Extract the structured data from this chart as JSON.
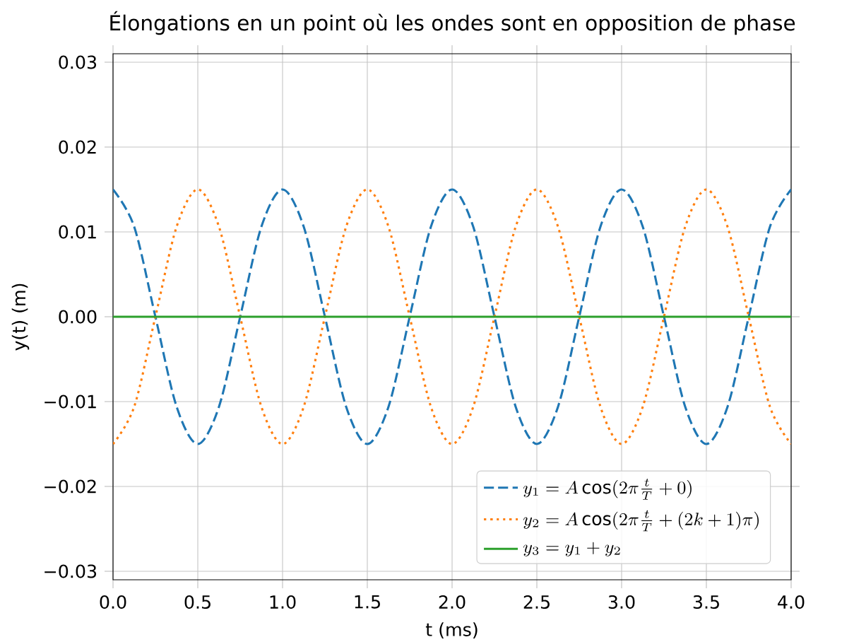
{
  "chart_data": {
    "type": "line",
    "title": "Élongations en un point où les ondes sont en opposition de phase",
    "xlabel": "t (ms)",
    "ylabel": "y(t) (m)",
    "x": [
      0,
      0.125,
      0.25,
      0.375,
      0.5,
      0.625,
      0.75,
      0.875,
      1,
      1.125,
      1.25,
      1.375,
      1.5,
      1.625,
      1.75,
      1.875,
      2,
      2.125,
      2.25,
      2.375,
      2.5,
      2.625,
      2.75,
      2.875,
      3,
      3.125,
      3.25,
      3.375,
      3.5,
      3.625,
      3.75,
      3.875,
      4
    ],
    "series": [
      {
        "name": "y_1 = A\\cos(2\\pi\\frac{t}{T} + 0)",
        "color": "#1f77b4",
        "line_style": "dashed",
        "values": [
          0.015,
          0.0106,
          0,
          -0.0106,
          -0.015,
          -0.0106,
          0,
          0.0106,
          0.015,
          0.0106,
          0,
          -0.0106,
          -0.015,
          -0.0106,
          0,
          0.0106,
          0.015,
          0.0106,
          0,
          -0.0106,
          -0.015,
          -0.0106,
          0,
          0.0106,
          0.015,
          0.0106,
          0,
          -0.0106,
          -0.015,
          -0.0106,
          0,
          0.0106,
          0.015
        ]
      },
      {
        "name": "y_2 = A\\cos(2\\pi\\frac{t}{T} + (2k+1)\\pi)",
        "color": "#ff7f0e",
        "line_style": "dotted",
        "values": [
          -0.015,
          -0.0106,
          0,
          0.0106,
          0.015,
          0.0106,
          0,
          -0.0106,
          -0.015,
          -0.0106,
          0,
          0.0106,
          0.015,
          0.0106,
          0,
          -0.0106,
          -0.015,
          -0.0106,
          0,
          0.0106,
          0.015,
          0.0106,
          0,
          -0.0106,
          -0.015,
          -0.0106,
          0,
          0.0106,
          0.015,
          0.0106,
          0,
          -0.0106,
          -0.015
        ]
      },
      {
        "name": "y_3 = y_1 + y_2",
        "color": "#2ca02c",
        "line_style": "solid",
        "values": [
          0,
          0,
          0,
          0,
          0,
          0,
          0,
          0,
          0,
          0,
          0,
          0,
          0,
          0,
          0,
          0,
          0,
          0,
          0,
          0,
          0,
          0,
          0,
          0,
          0,
          0,
          0,
          0,
          0,
          0,
          0,
          0,
          0
        ]
      }
    ],
    "xlim": [
      0,
      4
    ],
    "ylim": [
      -0.031,
      0.031
    ],
    "xticks": [
      {
        "value": 0,
        "label": "0.0"
      },
      {
        "value": 0.5,
        "label": "0.5"
      },
      {
        "value": 1,
        "label": "1.0"
      },
      {
        "value": 1.5,
        "label": "1.5"
      },
      {
        "value": 2,
        "label": "2.0"
      },
      {
        "value": 2.5,
        "label": "2.5"
      },
      {
        "value": 3,
        "label": "3.0"
      },
      {
        "value": 3.5,
        "label": "3.5"
      },
      {
        "value": 4,
        "label": "4.0"
      }
    ],
    "yticks": [
      {
        "value": -0.03,
        "label": "−0.03"
      },
      {
        "value": -0.02,
        "label": "−0.02"
      },
      {
        "value": -0.01,
        "label": "−0.01"
      },
      {
        "value": 0,
        "label": "0.00"
      },
      {
        "value": 0.01,
        "label": "0.01"
      },
      {
        "value": 0.02,
        "label": "0.02"
      },
      {
        "value": 0.03,
        "label": "0.03"
      }
    ],
    "grid": true,
    "legend": "bottom right"
  }
}
